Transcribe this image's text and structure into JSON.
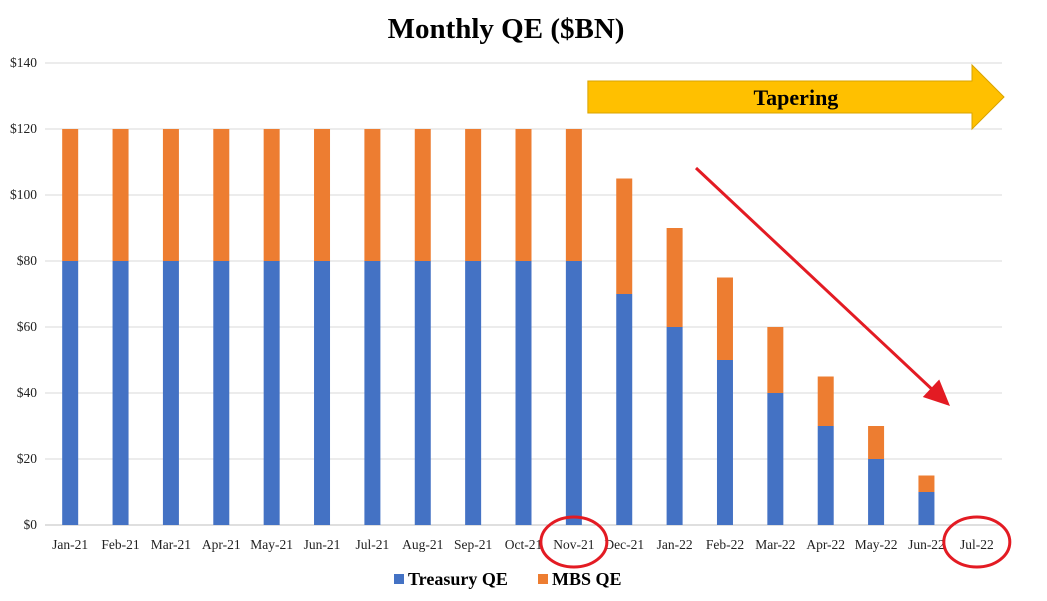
{
  "chart_data": {
    "type": "bar",
    "stacked": true,
    "title": "Monthly QE ($BN)",
    "xlabel": "",
    "ylabel": "",
    "ylim": [
      0,
      140
    ],
    "yticks": [
      "$0",
      "$20",
      "$40",
      "$60",
      "$80",
      "$100",
      "$120",
      "$140"
    ],
    "grid": true,
    "legend_position": "bottom",
    "categories": [
      "Jan-21",
      "Feb-21",
      "Mar-21",
      "Apr-21",
      "May-21",
      "Jun-21",
      "Jul-21",
      "Aug-21",
      "Sep-21",
      "Oct-21",
      "Nov-21",
      "Dec-21",
      "Jan-22",
      "Feb-22",
      "Mar-22",
      "Apr-22",
      "May-22",
      "Jun-22",
      "Jul-22"
    ],
    "series": [
      {
        "name": "Treasury QE",
        "color": "#4472C4",
        "values": [
          80,
          80,
          80,
          80,
          80,
          80,
          80,
          80,
          80,
          80,
          80,
          70,
          60,
          50,
          40,
          30,
          20,
          10,
          0
        ]
      },
      {
        "name": "MBS QE",
        "color": "#ED7D31",
        "values": [
          40,
          40,
          40,
          40,
          40,
          40,
          40,
          40,
          40,
          40,
          40,
          35,
          30,
          25,
          20,
          15,
          10,
          5,
          0
        ]
      }
    ],
    "annotations": {
      "tapering_label": "Tapering",
      "tapering_arrow_color": "#FFC000",
      "tapering_start_category": "Nov-21",
      "trend_arrow_color": "#E31B23",
      "circled_categories": [
        "Nov-21",
        "Jul-22"
      ],
      "circle_color": "#E31B23"
    }
  }
}
